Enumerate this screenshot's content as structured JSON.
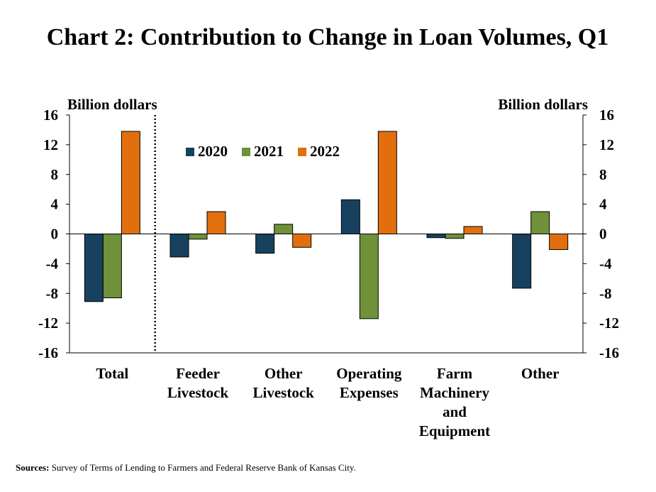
{
  "chart_data": {
    "type": "bar",
    "title": "Chart 2: Contribution to Change in Loan Volumes, Q1",
    "ylabel_left": "Billion dollars",
    "ylabel_right": "Billion dollars",
    "ylim": [
      -16,
      16
    ],
    "yticks": [
      16,
      12,
      8,
      4,
      0,
      -4,
      -8,
      -12,
      -16
    ],
    "categories": [
      [
        "Total"
      ],
      [
        "Feeder",
        "Livestock"
      ],
      [
        "Other",
        "Livestock"
      ],
      [
        "Operating",
        "Expenses"
      ],
      [
        "Farm",
        "Machinery",
        "and",
        "Equipment"
      ],
      [
        "Other"
      ]
    ],
    "series": [
      {
        "name": "2020",
        "color": "#17415f",
        "values": [
          -9.1,
          -3.1,
          -2.6,
          4.6,
          -0.5,
          -7.3
        ]
      },
      {
        "name": "2021",
        "color": "#6e9139",
        "values": [
          -8.6,
          -0.7,
          1.3,
          -11.4,
          -0.6,
          3.0
        ]
      },
      {
        "name": "2022",
        "color": "#e26f0d",
        "values": [
          13.8,
          3.0,
          -1.8,
          13.8,
          1.0,
          -2.1
        ]
      }
    ],
    "legend": "top-left",
    "separator_after_category": 0,
    "grid": false
  },
  "source": {
    "label": "Sources:",
    "text": " Survey of Terms of Lending to Farmers and Federal Reserve Bank of Kansas City."
  }
}
